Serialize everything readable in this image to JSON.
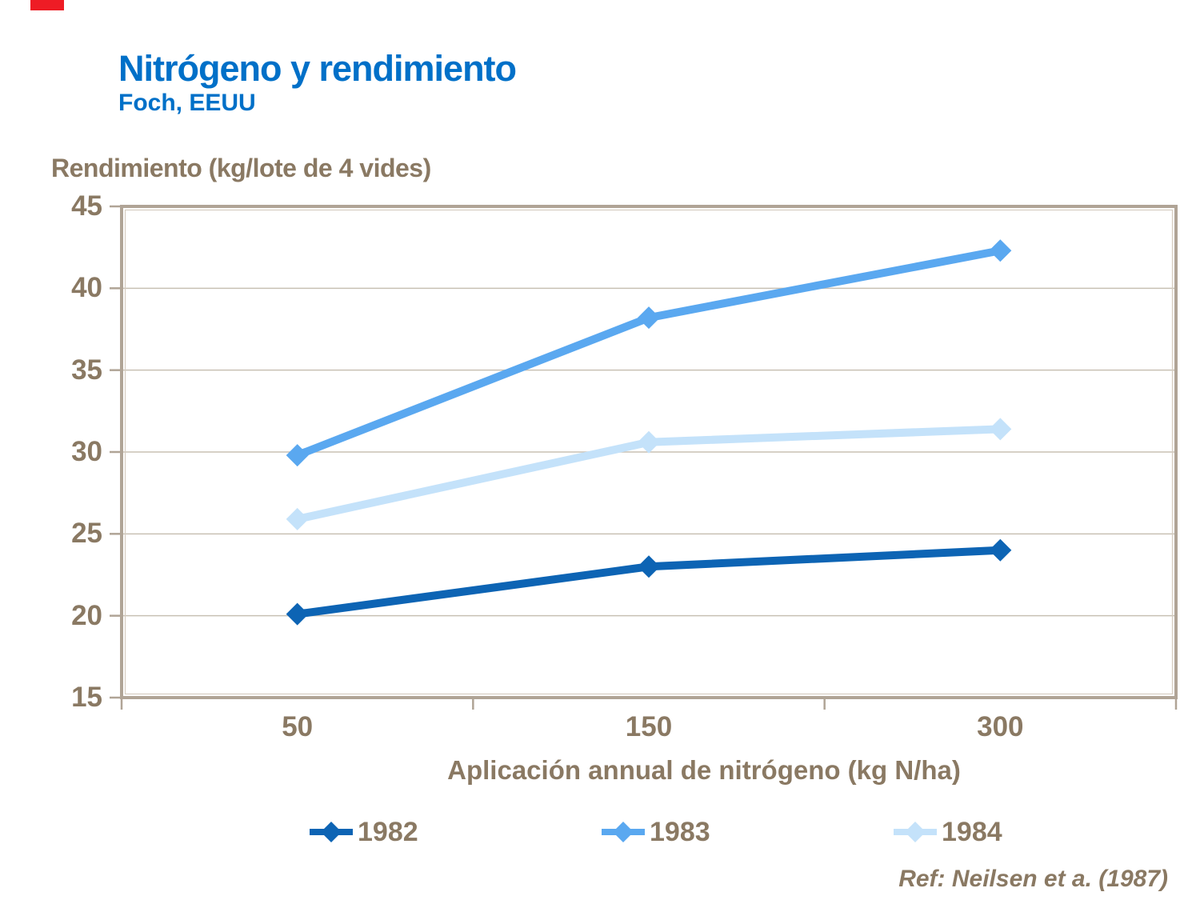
{
  "page": {
    "title": "Nitrógeno y rendimiento",
    "subtitle": "Foch, EEUU",
    "footer": "Ref: Neilsen et a. (1987)"
  },
  "colors": {
    "title_blue": "#0070C8",
    "text_brown": "#8A7963",
    "axis": "#B0A496",
    "axis_inner": "#D5CCC0",
    "gridline": "#C8C0B4",
    "red_marker": "#EE1C25"
  },
  "chart_data": {
    "type": "line",
    "y_axis_title": "Rendimiento (kg/lote de 4 vides)",
    "x_axis_title": "Aplicación annual de nitrógeno (kg N/ha)",
    "categories": [
      "50",
      "150",
      "300"
    ],
    "series": [
      {
        "name": "1982",
        "values": [
          20.1,
          23.0,
          24.0
        ],
        "color": "#0D64B4"
      },
      {
        "name": "1983",
        "values": [
          29.8,
          38.2,
          42.3
        ],
        "color": "#5AA8F0"
      },
      {
        "name": "1984",
        "values": [
          25.9,
          30.6,
          31.4
        ],
        "color": "#C4E2FA"
      }
    ],
    "ylim": [
      15,
      45
    ],
    "yticks": [
      15,
      20,
      25,
      30,
      35,
      40,
      45
    ],
    "grid": "horizontal",
    "legend_position": "bottom",
    "marker": "diamond"
  }
}
